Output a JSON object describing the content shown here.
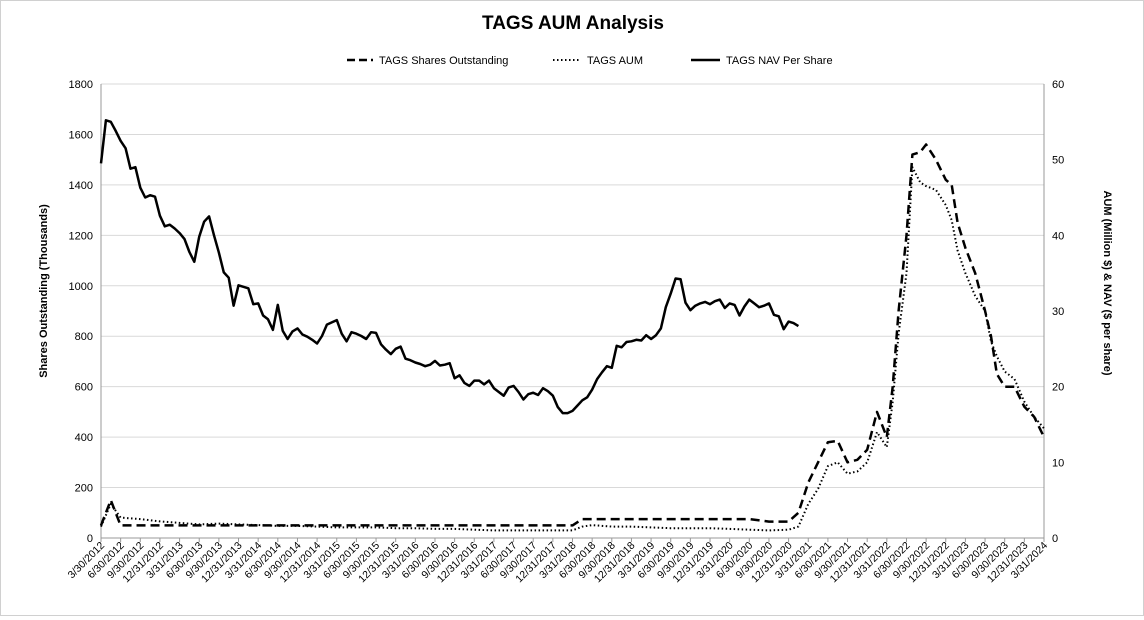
{
  "chart_data": {
    "type": "line",
    "title": "TAGS AUM Analysis",
    "ylabel_left": "Shares Outstanding (Thousands)",
    "ylabel_right": "AUM (Million $) & NAV ($ per share)",
    "ylim_left": [
      0,
      1800
    ],
    "ylim_right": [
      0,
      60
    ],
    "yticks_left": [
      0,
      200,
      400,
      600,
      800,
      1000,
      1200,
      1400,
      1600,
      1800
    ],
    "yticks_right": [
      0,
      10,
      20,
      30,
      40,
      50,
      60
    ],
    "grid": "horizontal",
    "legend": "top-center",
    "xticks": [
      "3/30/2012",
      "6/30/2012",
      "9/30/2012",
      "12/31/2012",
      "3/31/2013",
      "6/30/2013",
      "9/30/2013",
      "12/31/2013",
      "3/31/2014",
      "6/30/2014",
      "9/30/2014",
      "12/31/2014",
      "3/31/2015",
      "6/30/2015",
      "9/30/2015",
      "12/31/2015",
      "3/31/2016",
      "6/30/2016",
      "9/30/2016",
      "12/31/2016",
      "3/31/2017",
      "6/30/2017",
      "9/30/2017",
      "12/31/2017",
      "3/31/2018",
      "6/30/2018",
      "9/30/2018",
      "12/31/2018",
      "3/31/2019",
      "6/30/2019",
      "9/30/2019",
      "12/31/2019",
      "3/31/2020",
      "6/30/2020",
      "9/30/2020",
      "12/31/2020",
      "3/31/2021",
      "6/30/2021",
      "9/30/2021",
      "12/31/2021",
      "3/31/2022",
      "6/30/2022",
      "9/30/2022",
      "12/31/2022",
      "3/31/2023",
      "6/30/2023",
      "9/30/2023",
      "12/31/2023",
      "3/31/2024"
    ],
    "series": [
      {
        "name": "TAGS Shares Outstanding",
        "axis": "left",
        "style": "dashed",
        "points": [
          [
            0,
            50
          ],
          [
            0.5,
            150
          ],
          [
            1,
            50
          ],
          [
            2,
            50
          ],
          [
            3,
            50
          ],
          [
            4,
            50
          ],
          [
            5,
            50
          ],
          [
            6,
            50
          ],
          [
            7,
            50
          ],
          [
            8,
            50
          ],
          [
            9,
            50
          ],
          [
            10,
            50
          ],
          [
            11,
            50
          ],
          [
            12,
            50
          ],
          [
            13,
            50
          ],
          [
            14,
            50
          ],
          [
            15,
            50
          ],
          [
            16,
            50
          ],
          [
            17,
            50
          ],
          [
            18,
            50
          ],
          [
            19,
            50
          ],
          [
            20,
            50
          ],
          [
            21,
            50
          ],
          [
            22,
            50
          ],
          [
            23,
            50
          ],
          [
            24,
            50
          ],
          [
            24.5,
            75
          ],
          [
            25,
            75
          ],
          [
            26,
            75
          ],
          [
            27,
            75
          ],
          [
            28,
            75
          ],
          [
            29,
            75
          ],
          [
            30,
            75
          ],
          [
            31,
            75
          ],
          [
            32,
            75
          ],
          [
            33,
            75
          ],
          [
            34,
            65
          ],
          [
            35,
            65
          ],
          [
            35.5,
            100
          ],
          [
            36,
            220
          ],
          [
            36.5,
            300
          ],
          [
            37,
            380
          ],
          [
            37.5,
            385
          ],
          [
            38,
            300
          ],
          [
            38.5,
            310
          ],
          [
            39,
            350
          ],
          [
            39.5,
            500
          ],
          [
            40,
            400
          ],
          [
            40.3,
            600
          ],
          [
            40.6,
            900
          ],
          [
            41,
            1200
          ],
          [
            41.3,
            1520
          ],
          [
            41.7,
            1530
          ],
          [
            42,
            1560
          ],
          [
            42.5,
            1500
          ],
          [
            43,
            1420
          ],
          [
            43.3,
            1400
          ],
          [
            43.6,
            1250
          ],
          [
            44,
            1150
          ],
          [
            44.5,
            1050
          ],
          [
            45,
            900
          ],
          [
            45.3,
            800
          ],
          [
            45.6,
            650
          ],
          [
            46,
            600
          ],
          [
            46.5,
            600
          ],
          [
            47,
            520
          ],
          [
            47.5,
            480
          ],
          [
            48,
            400
          ]
        ]
      },
      {
        "name": "TAGS AUM",
        "axis": "right",
        "style": "dotted",
        "points": [
          [
            0,
            1.5
          ],
          [
            0.5,
            4.5
          ],
          [
            1,
            2.7
          ],
          [
            2,
            2.5
          ],
          [
            3,
            2.2
          ],
          [
            4,
            2.0
          ],
          [
            5,
            1.8
          ],
          [
            6,
            1.9
          ],
          [
            7,
            1.8
          ],
          [
            8,
            1.7
          ],
          [
            9,
            1.6
          ],
          [
            10,
            1.6
          ],
          [
            11,
            1.5
          ],
          [
            12,
            1.4
          ],
          [
            13,
            1.4
          ],
          [
            14,
            1.4
          ],
          [
            15,
            1.3
          ],
          [
            16,
            1.3
          ],
          [
            17,
            1.2
          ],
          [
            18,
            1.2
          ],
          [
            19,
            1.1
          ],
          [
            20,
            1.0
          ],
          [
            21,
            1.0
          ],
          [
            22,
            1.0
          ],
          [
            23,
            1.0
          ],
          [
            24,
            1.0
          ],
          [
            24.5,
            1.5
          ],
          [
            25,
            1.7
          ],
          [
            26,
            1.5
          ],
          [
            27,
            1.5
          ],
          [
            28,
            1.4
          ],
          [
            29,
            1.3
          ],
          [
            30,
            1.3
          ],
          [
            31,
            1.3
          ],
          [
            32,
            1.2
          ],
          [
            33,
            1.1
          ],
          [
            34,
            1.0
          ],
          [
            35,
            1.1
          ],
          [
            35.5,
            1.5
          ],
          [
            36,
            4.5
          ],
          [
            36.5,
            6.5
          ],
          [
            37,
            9.5
          ],
          [
            37.5,
            10
          ],
          [
            38,
            8.5
          ],
          [
            38.5,
            8.8
          ],
          [
            39,
            10
          ],
          [
            39.5,
            14
          ],
          [
            40,
            12
          ],
          [
            40.3,
            18
          ],
          [
            40.6,
            27
          ],
          [
            41,
            35
          ],
          [
            41.3,
            49
          ],
          [
            41.7,
            47
          ],
          [
            42,
            46.5
          ],
          [
            42.5,
            46
          ],
          [
            43,
            44
          ],
          [
            43.3,
            42
          ],
          [
            43.6,
            38
          ],
          [
            44,
            35
          ],
          [
            44.5,
            32
          ],
          [
            45,
            30
          ],
          [
            45.3,
            26
          ],
          [
            45.6,
            24
          ],
          [
            46,
            22
          ],
          [
            46.5,
            21
          ],
          [
            47,
            18
          ],
          [
            47.5,
            16
          ],
          [
            48,
            14.5
          ]
        ]
      },
      {
        "name": "TAGS NAV Per Share",
        "axis": "right",
        "style": "solid",
        "points": [
          [
            0,
            49.5
          ],
          [
            0.25,
            55.2
          ],
          [
            0.5,
            55
          ],
          [
            0.75,
            53.8
          ],
          [
            1,
            52.5
          ],
          [
            1.25,
            51.5
          ],
          [
            1.5,
            48.8
          ],
          [
            1.75,
            49
          ],
          [
            2,
            46.3
          ],
          [
            2.25,
            45
          ],
          [
            2.5,
            45.3
          ],
          [
            2.75,
            45.1
          ],
          [
            3,
            42.6
          ],
          [
            3.25,
            41.2
          ],
          [
            3.5,
            41.4
          ],
          [
            3.75,
            40.9
          ],
          [
            4,
            40.3
          ],
          [
            4.25,
            39.5
          ],
          [
            4.5,
            37.8
          ],
          [
            4.75,
            36.5
          ],
          [
            5,
            39.8
          ],
          [
            5.25,
            41.8
          ],
          [
            5.5,
            42.5
          ],
          [
            5.75,
            40
          ],
          [
            6,
            37.7
          ],
          [
            6.25,
            35.1
          ],
          [
            6.5,
            34.4
          ],
          [
            6.75,
            30.7
          ],
          [
            7,
            33.4
          ],
          [
            7.25,
            33.2
          ],
          [
            7.5,
            33
          ],
          [
            7.75,
            30.9
          ],
          [
            8,
            31
          ],
          [
            8.25,
            29.4
          ],
          [
            8.5,
            28.9
          ],
          [
            8.75,
            27.5
          ],
          [
            9,
            30.8
          ],
          [
            9.25,
            27.4
          ],
          [
            9.5,
            26.3
          ],
          [
            9.75,
            27.3
          ],
          [
            10,
            27.7
          ],
          [
            10.25,
            26.9
          ],
          [
            10.5,
            26.6
          ],
          [
            10.75,
            26.2
          ],
          [
            11,
            25.7
          ],
          [
            11.25,
            26.7
          ],
          [
            11.5,
            28.2
          ],
          [
            11.75,
            28.5
          ],
          [
            12,
            28.8
          ],
          [
            12.25,
            27
          ],
          [
            12.5,
            26
          ],
          [
            12.75,
            27.2
          ],
          [
            13,
            27
          ],
          [
            13.25,
            26.7
          ],
          [
            13.5,
            26.3
          ],
          [
            13.75,
            27.2
          ],
          [
            14,
            27.1
          ],
          [
            14.25,
            25.6
          ],
          [
            14.5,
            24.9
          ],
          [
            14.75,
            24.3
          ],
          [
            15,
            25
          ],
          [
            15.25,
            25.3
          ],
          [
            15.5,
            23.7
          ],
          [
            15.75,
            23.5
          ],
          [
            16,
            23.2
          ],
          [
            16.25,
            23
          ],
          [
            16.5,
            22.7
          ],
          [
            16.75,
            22.9
          ],
          [
            17,
            23.4
          ],
          [
            17.25,
            22.8
          ],
          [
            17.5,
            22.9
          ],
          [
            17.75,
            23.1
          ],
          [
            18,
            21.1
          ],
          [
            18.25,
            21.5
          ],
          [
            18.5,
            20.5
          ],
          [
            18.75,
            20.1
          ],
          [
            19,
            20.8
          ],
          [
            19.25,
            20.8
          ],
          [
            19.5,
            20.3
          ],
          [
            19.75,
            20.8
          ],
          [
            20,
            19.8
          ],
          [
            20.25,
            19.3
          ],
          [
            20.5,
            18.8
          ],
          [
            20.75,
            19.9
          ],
          [
            21,
            20.1
          ],
          [
            21.25,
            19.3
          ],
          [
            21.5,
            18.3
          ],
          [
            21.75,
            19
          ],
          [
            22,
            19.2
          ],
          [
            22.25,
            18.9
          ],
          [
            22.5,
            19.8
          ],
          [
            22.75,
            19.4
          ],
          [
            23,
            18.8
          ],
          [
            23.25,
            17.3
          ],
          [
            23.5,
            16.5
          ],
          [
            23.75,
            16.5
          ],
          [
            24,
            16.8
          ],
          [
            24.25,
            17.5
          ],
          [
            24.5,
            18.2
          ],
          [
            24.75,
            18.6
          ],
          [
            25,
            19.6
          ],
          [
            25.25,
            21
          ],
          [
            25.5,
            21.9
          ],
          [
            25.75,
            22.7
          ],
          [
            26,
            22.5
          ],
          [
            26.25,
            25.4
          ],
          [
            26.5,
            25.2
          ],
          [
            26.75,
            25.9
          ],
          [
            27,
            26
          ],
          [
            27.25,
            26.2
          ],
          [
            27.5,
            26.1
          ],
          [
            27.75,
            26.8
          ],
          [
            28,
            26.3
          ],
          [
            28.25,
            26.8
          ],
          [
            28.5,
            27.7
          ],
          [
            28.75,
            30.5
          ],
          [
            29,
            32.3
          ],
          [
            29.25,
            34.3
          ],
          [
            29.5,
            34.2
          ],
          [
            29.75,
            31.1
          ],
          [
            30,
            30.1
          ],
          [
            30.25,
            30.7
          ],
          [
            30.5,
            31
          ],
          [
            30.75,
            31.2
          ],
          [
            31,
            30.9
          ],
          [
            31.25,
            31.3
          ],
          [
            31.5,
            31.5
          ],
          [
            31.75,
            30.4
          ],
          [
            32,
            31
          ],
          [
            32.25,
            30.8
          ],
          [
            32.5,
            29.4
          ],
          [
            32.75,
            30.6
          ],
          [
            33,
            31.5
          ],
          [
            33.25,
            31
          ],
          [
            33.5,
            30.5
          ],
          [
            33.75,
            30.7
          ],
          [
            34,
            31
          ],
          [
            34.25,
            29.5
          ],
          [
            34.5,
            29.3
          ],
          [
            34.75,
            27.6
          ],
          [
            35,
            28.6
          ],
          [
            35.25,
            28.4
          ],
          [
            35.5,
            28
          ]
        ]
      }
    ]
  }
}
